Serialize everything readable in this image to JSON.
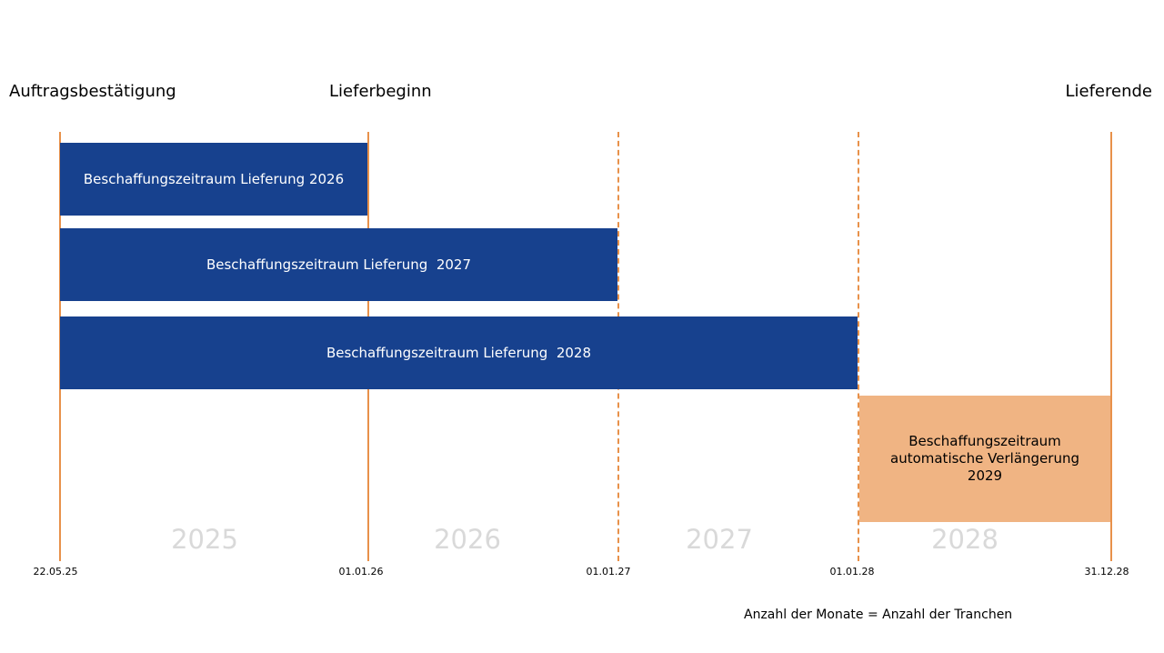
{
  "milestones": [
    "Auftragsbestätigung",
    "Lieferbeginn",
    "Lieferende"
  ],
  "bars": [
    "Beschaffungszeitraum Lieferung 2026",
    "Beschaffungszeitraum Lieferung  2027",
    "Beschaffungszeitraum Lieferung  2028"
  ],
  "extension": {
    "line1": "Beschaffungszeitraum",
    "line2": "automatische Verlängerung",
    "line3": "2029"
  },
  "years": [
    "2025",
    "2026",
    "2027",
    "2028"
  ],
  "dates": [
    "22.05.25",
    "01.01.26",
    "01.01.27",
    "01.01.28",
    "31.12.28"
  ],
  "note": "Anzahl der Monate = Anzahl der Tranchen",
  "colors": {
    "bar": "#17418e",
    "extension": "#f0b483",
    "line": "#e8914a",
    "year_text": "#d9d9d9"
  }
}
